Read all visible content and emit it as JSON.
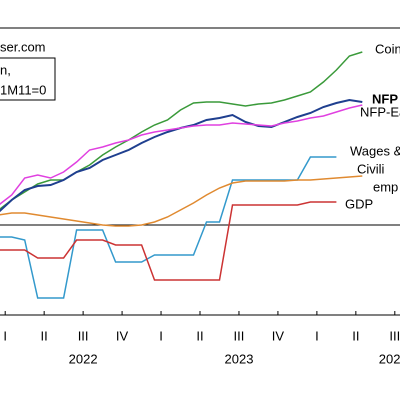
{
  "chart_data": {
    "type": "line",
    "source": "ser.com",
    "note_lines": [
      "n,",
      "1M11=0"
    ],
    "x": [
      1,
      2,
      3,
      4,
      5,
      6,
      7,
      8,
      9,
      10,
      11,
      12,
      13,
      14,
      15,
      16,
      17,
      18,
      19,
      20,
      21,
      22,
      23,
      24,
      25,
      26,
      27,
      28,
      29
    ],
    "xlim": [
      1.1,
      31.9
    ],
    "ylim": [
      -9,
      19.7
    ],
    "zero_line": 0,
    "xticks": [
      {
        "value": 1.5,
        "label": "I"
      },
      {
        "value": 4.5,
        "label": "II"
      },
      {
        "value": 7.5,
        "label": "III"
      },
      {
        "value": 10.5,
        "label": "IV"
      },
      {
        "value": 13.5,
        "label": "I"
      },
      {
        "value": 16.5,
        "label": "II"
      },
      {
        "value": 19.5,
        "label": "III"
      },
      {
        "value": 22.5,
        "label": "IV"
      },
      {
        "value": 25.5,
        "label": "I"
      },
      {
        "value": 28.5,
        "label": "II"
      },
      {
        "value": 31.5,
        "label": "III"
      }
    ],
    "year_ticks": [
      {
        "value": 7.5,
        "label": "2022"
      },
      {
        "value": 19.5,
        "label": "2023"
      },
      {
        "value": 31.1,
        "label": "202"
      }
    ],
    "series": [
      {
        "label_lines": [
          "Coin"
        ],
        "color": "#3a9a3a",
        "values": [
          1.5,
          2.5,
          3.3,
          4.1,
          4.5,
          4.5,
          5.3,
          6.0,
          7.0,
          7.8,
          8.5,
          9.3,
          10.0,
          10.5,
          11.5,
          12.2,
          12.3,
          12.3,
          12.1,
          11.9,
          12.1,
          12.2,
          12.5,
          12.9,
          13.3,
          14.3,
          15.5,
          16.9,
          17.3
        ]
      },
      {
        "label_lines": [
          "NFP"
        ],
        "color": "#1f3f8f",
        "bold": true,
        "values": [
          1.3,
          2.5,
          3.5,
          3.9,
          4.0,
          4.5,
          5.3,
          5.7,
          6.5,
          7.0,
          7.5,
          8.2,
          8.8,
          9.3,
          9.7,
          10.0,
          10.5,
          10.7,
          11.0,
          10.3,
          9.9,
          9.8,
          10.3,
          10.8,
          11.2,
          11.8,
          12.2,
          12.5,
          12.3
        ]
      },
      {
        "label_lines": [
          "NFP-Ea"
        ],
        "color": "#e040e0",
        "values": [
          2.0,
          3.0,
          4.7,
          5.0,
          4.7,
          5.3,
          6.3,
          7.5,
          7.8,
          8.2,
          8.5,
          9.0,
          9.3,
          9.5,
          9.7,
          9.9,
          10.0,
          10.0,
          10.2,
          10.1,
          10.0,
          9.9,
          10.2,
          10.4,
          10.7,
          10.9,
          11.3,
          11.7,
          12.0
        ]
      },
      {
        "label_lines": [
          "Wages &"
        ],
        "color": "#3399cc",
        "values": [
          -1.2,
          -1.2,
          -1.5,
          -7.3,
          -7.3,
          -7.3,
          -0.5,
          -0.5,
          -0.5,
          -3.7,
          -3.7,
          -3.7,
          -3.0,
          -3.0,
          -3.0,
          -3.0,
          0.3,
          0.3,
          4.5,
          4.5,
          4.5,
          4.5,
          4.5,
          4.5,
          6.8,
          6.8,
          6.8,
          null,
          null
        ]
      },
      {
        "label_lines": [
          "Civili",
          "emp"
        ],
        "color": "#e08a30",
        "values": [
          1.0,
          1.2,
          1.2,
          1.0,
          0.8,
          0.6,
          0.4,
          0.2,
          0,
          -0.1,
          -0.1,
          0,
          0.3,
          0.8,
          1.5,
          2.2,
          3.0,
          3.7,
          4.2,
          4.4,
          4.4,
          4.4,
          4.4,
          4.5,
          4.5,
          4.6,
          4.7,
          4.8,
          4.9
        ]
      },
      {
        "label_lines": [
          "GDP"
        ],
        "color": "#cc3333",
        "values": [
          -2.5,
          -2.5,
          -2.5,
          -3.3,
          -3.3,
          -3.3,
          -1.5,
          -1.5,
          -1.5,
          -2.0,
          -2.0,
          -2.0,
          -5.5,
          -5.5,
          -5.5,
          -5.5,
          -5.5,
          -5.5,
          2.0,
          2.0,
          2.0,
          2.0,
          2.0,
          2.0,
          2.3,
          2.3,
          2.3,
          null,
          null
        ]
      }
    ]
  }
}
